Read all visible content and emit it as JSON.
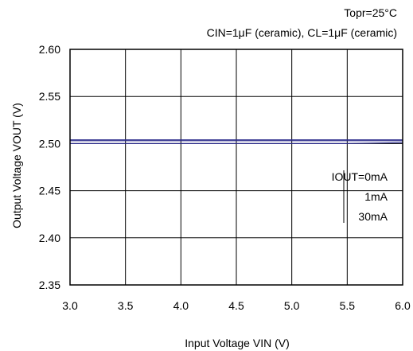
{
  "chart_data": {
    "type": "line",
    "notes": [
      "Topr=25°C",
      "CIN=1μF (ceramic), CL=1μF (ceramic)"
    ],
    "xlabel": "Input Voltage VIN (V)",
    "ylabel": "Output Voltage VOUT (V)",
    "xlim": [
      3.0,
      6.0
    ],
    "ylim": [
      2.35,
      2.6
    ],
    "xticks": [
      "3.0",
      "3.5",
      "4.0",
      "4.5",
      "5.0",
      "5.5",
      "6.0"
    ],
    "yticks": [
      "2.60",
      "2.55",
      "2.50",
      "2.45",
      "2.40",
      "2.35"
    ],
    "grid": true,
    "legend_labels": [
      "IOUT=0mA",
      "1mA",
      "30mA"
    ],
    "series": [
      {
        "x": [
          3.0,
          3.5,
          4.0,
          4.5,
          5.0,
          5.5,
          6.0
        ],
        "values": [
          2.504,
          2.504,
          2.504,
          2.504,
          2.504,
          2.504,
          2.504
        ],
        "color": "#2a2a8a"
      },
      {
        "x": [
          3.0,
          3.5,
          4.0,
          4.5,
          5.0,
          5.5,
          6.0
        ],
        "values": [
          2.503,
          2.503,
          2.503,
          2.503,
          2.503,
          2.503,
          2.503
        ],
        "color": "#2a2a8a"
      },
      {
        "x": [
          3.0,
          3.5,
          4.0,
          4.5,
          5.0,
          5.5,
          6.0
        ],
        "values": [
          2.5,
          2.5,
          2.5,
          2.5,
          2.5,
          2.5,
          2.501
        ],
        "color": "#2a2a8a"
      }
    ]
  }
}
